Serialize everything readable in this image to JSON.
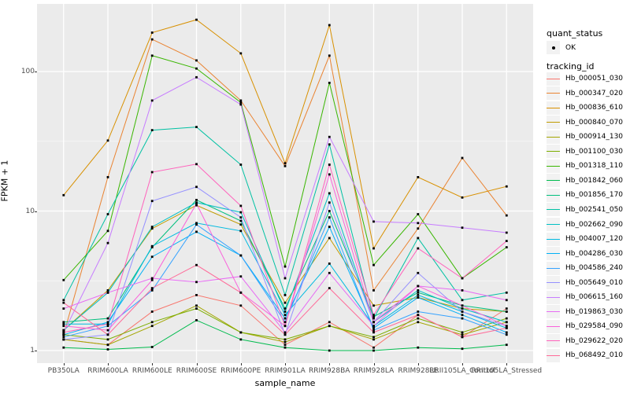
{
  "legend": {
    "quant_status": {
      "title": "quant_status",
      "items": [
        {
          "label": "OK"
        }
      ]
    },
    "tracking_id": {
      "title": "tracking_id"
    }
  },
  "chart_data": {
    "type": "line",
    "title": "",
    "xlabel": "sample_name",
    "ylabel": "FPKM + 1",
    "yscale": "log10",
    "yticks": [
      1,
      10,
      100
    ],
    "ylim": [
      0.95,
      320
    ],
    "grid": "on",
    "legend_position": "right",
    "point_marker_color": "#000000",
    "quant_status_value": "OK",
    "categories": [
      "PB350LA",
      "RRIM600LA",
      "RRIM600LE",
      "RRIM600SE",
      "RRIM600PE",
      "RRIM901LA",
      "RRIM928BA",
      "RRIM928LA",
      "RRIM928LE",
      "RRII105LA_Control",
      "RRII105LA_Stressed"
    ],
    "series": [
      {
        "name": "Hb_000051_030",
        "color": "#F8766D",
        "values": [
          1.2,
          1.1,
          1.9,
          2.5,
          2.1,
          1.1,
          1.6,
          1.05,
          1.8,
          1.25,
          2.0
        ]
      },
      {
        "name": "Hb_000347_020",
        "color": "#EA8331",
        "values": [
          1.3,
          17.5,
          170,
          120,
          62,
          21,
          130,
          2.7,
          7.5,
          24,
          9.3
        ]
      },
      {
        "name": "Hb_000836_610",
        "color": "#D89000",
        "values": [
          13,
          32,
          190,
          235,
          135,
          22,
          215,
          5.4,
          17.5,
          12.5,
          15
        ]
      },
      {
        "name": "Hb_000840_070",
        "color": "#C09B00",
        "values": [
          1.4,
          2.7,
          7.5,
          11,
          8.0,
          2.2,
          6.4,
          2.1,
          2.4,
          2.0,
          1.9
        ]
      },
      {
        "name": "Hb_000914_130",
        "color": "#A3A500",
        "values": [
          1.2,
          1.1,
          1.5,
          2.1,
          1.35,
          1.15,
          1.5,
          1.2,
          1.6,
          1.3,
          1.6
        ]
      },
      {
        "name": "Hb_001100_030",
        "color": "#7CAE00",
        "values": [
          1.3,
          1.2,
          1.6,
          2.0,
          1.35,
          1.2,
          1.5,
          1.25,
          1.7,
          1.35,
          1.7
        ]
      },
      {
        "name": "Hb_001318_110",
        "color": "#39B600",
        "values": [
          3.2,
          7.2,
          130,
          105,
          60,
          4.0,
          83,
          4.1,
          9.5,
          3.3,
          5.5
        ]
      },
      {
        "name": "Hb_001842_060",
        "color": "#00BB4E",
        "values": [
          1.05,
          1.02,
          1.06,
          1.65,
          1.2,
          1.05,
          1.0,
          1.0,
          1.05,
          1.03,
          1.1
        ]
      },
      {
        "name": "Hb_001856_170",
        "color": "#00BF7D",
        "values": [
          1.6,
          1.7,
          5.5,
          12,
          8.5,
          2.0,
          10,
          1.75,
          2.6,
          2.1,
          1.9
        ]
      },
      {
        "name": "Hb_002541_050",
        "color": "#00C1A3",
        "values": [
          2.3,
          9.5,
          38,
          40,
          21.5,
          2.5,
          30,
          1.7,
          6.4,
          2.3,
          2.6
        ]
      },
      {
        "name": "Hb_002662_090",
        "color": "#00BFC4",
        "values": [
          1.4,
          2.6,
          7.7,
          11.5,
          9.8,
          1.9,
          13.4,
          1.6,
          2.7,
          2.0,
          1.6
        ]
      },
      {
        "name": "Hb_004007_120",
        "color": "#00BAE0",
        "values": [
          1.55,
          1.55,
          5.6,
          8.2,
          7.2,
          1.8,
          4.2,
          1.5,
          2.5,
          1.9,
          1.45
        ]
      },
      {
        "name": "Hb_004286_030",
        "color": "#00B0F6",
        "values": [
          1.3,
          1.6,
          4.7,
          7.1,
          4.8,
          1.7,
          7.7,
          1.45,
          2.4,
          1.8,
          1.35
        ]
      },
      {
        "name": "Hb_004586_240",
        "color": "#35A2FF",
        "values": [
          1.25,
          1.5,
          2.7,
          8.0,
          4.8,
          1.6,
          9.0,
          1.4,
          1.9,
          1.7,
          1.3
        ]
      },
      {
        "name": "Hb_005649_010",
        "color": "#9590FF",
        "values": [
          1.2,
          1.3,
          11.8,
          14.9,
          9.0,
          1.3,
          11.5,
          1.6,
          3.6,
          1.9,
          1.5
        ]
      },
      {
        "name": "Hb_006615_160",
        "color": "#C77CFF",
        "values": [
          1.35,
          5.9,
          62,
          91,
          58,
          3.3,
          34,
          8.4,
          8.2,
          7.6,
          7.0
        ]
      },
      {
        "name": "Hb_019863_030",
        "color": "#E76BF3",
        "values": [
          2.0,
          2.6,
          3.3,
          3.1,
          3.4,
          1.35,
          3.6,
          1.5,
          2.9,
          2.7,
          2.3
        ]
      },
      {
        "name": "Hb_029584_090",
        "color": "#FA62DB",
        "values": [
          1.5,
          1.4,
          3.2,
          11.3,
          2.6,
          1.5,
          18.3,
          1.6,
          2.9,
          2.1,
          1.5
        ]
      },
      {
        "name": "Hb_029622_020",
        "color": "#FF62BC",
        "values": [
          1.35,
          1.55,
          19,
          21.7,
          10.9,
          1.5,
          21.5,
          1.8,
          5.4,
          3.3,
          6.1
        ]
      },
      {
        "name": "Hb_068492_010",
        "color": "#FF6A98",
        "values": [
          2.2,
          1.3,
          2.8,
          4.1,
          2.6,
          1.3,
          2.8,
          1.35,
          1.8,
          1.25,
          1.45
        ]
      }
    ]
  }
}
